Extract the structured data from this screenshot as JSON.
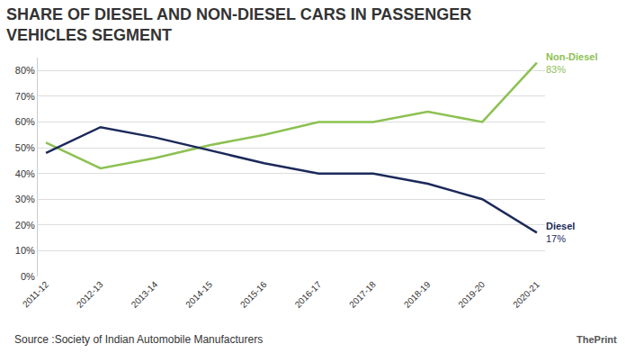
{
  "chart_data": {
    "type": "line",
    "title": "SHARE OF DIESEL AND NON-DIESEL CARS IN PASSENGER VEHICLES SEGMENT",
    "source": "Source :Society of Indian Automobile Manufacturers",
    "credit": "ThePrint",
    "categories": [
      "2011-12",
      "2012-13",
      "2013-14",
      "2014-15",
      "2015-16",
      "2016-17",
      "2017-18",
      "2018-19",
      "2019-20",
      "2020-21"
    ],
    "series": [
      {
        "name": "Non-Diesel",
        "color": "#8cc152",
        "values": [
          52,
          42,
          46,
          51,
          55,
          60,
          60,
          64,
          60,
          83
        ],
        "value_labels": [
          null,
          null,
          null,
          null,
          null,
          null,
          null,
          null,
          null,
          "83%"
        ]
      },
      {
        "name": "Diesel",
        "color": "#1c2a5a",
        "values": [
          48,
          58,
          54,
          49,
          44,
          40,
          40,
          36,
          30,
          17
        ],
        "value_labels": [
          null,
          null,
          null,
          null,
          null,
          null,
          null,
          null,
          null,
          "17%"
        ]
      }
    ],
    "ylim": [
      0,
      85
    ],
    "yticks": [
      {
        "value": 0,
        "label": "0%"
      },
      {
        "value": 10,
        "label": "10%"
      },
      {
        "value": 20,
        "label": "20%"
      },
      {
        "value": 30,
        "label": "30%"
      },
      {
        "value": 40,
        "label": "40%"
      },
      {
        "value": 50,
        "label": "50%"
      },
      {
        "value": 60,
        "label": "60%"
      },
      {
        "value": 70,
        "label": "70%"
      },
      {
        "value": 80,
        "label": "80%"
      }
    ],
    "grid": true
  }
}
